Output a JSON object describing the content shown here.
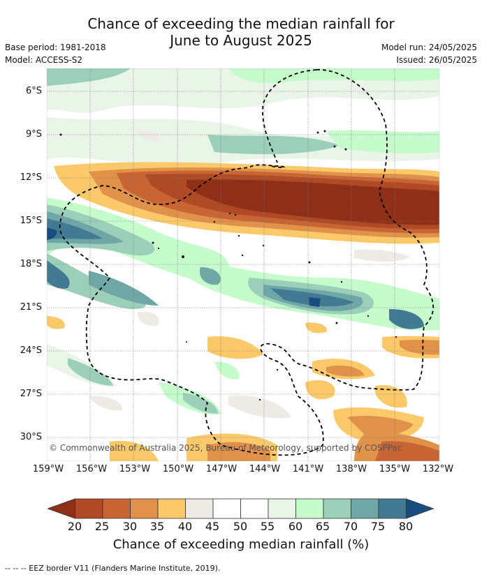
{
  "header": {
    "title_line1": "Chance of exceeding the median rainfall for",
    "title_line2": "June to August 2025",
    "base_period": "Base period: 1981-2018",
    "model": "Model: ACCESS-S2",
    "model_run": "Model run: 24/05/2025",
    "issued": "Issued: 26/05/2025"
  },
  "map": {
    "copyright": "© Commonwealth of Australia 2025, Bureau of Meteorology, supported by COSPPac",
    "lat_labels": [
      "6°S",
      "9°S",
      "12°S",
      "15°S",
      "18°S",
      "21°S",
      "24°S",
      "27°S",
      "30°S"
    ],
    "lon_labels": [
      "159°W",
      "156°W",
      "153°W",
      "150°W",
      "147°W",
      "144°W",
      "141°W",
      "138°W",
      "135°W",
      "132°W"
    ]
  },
  "colorbar": {
    "ticks": [
      "20",
      "25",
      "30",
      "35",
      "40",
      "45",
      "50",
      "55",
      "60",
      "65",
      "70",
      "75",
      "80"
    ],
    "colors": [
      "#8e2f18",
      "#b04a25",
      "#c96534",
      "#e0924a",
      "#fcc96a",
      "#eeeae6",
      "#ffffff",
      "#ffffff",
      "#e9f5e7",
      "#c6fbcb",
      "#9ccfba",
      "#6fa7a6",
      "#437a93",
      "#194d80"
    ],
    "label": "Chance of exceeding median rainfall (%)"
  },
  "footer": {
    "legend": "--  --  -- EEZ border V11 (Flanders Marine Institute, 2019)."
  }
}
